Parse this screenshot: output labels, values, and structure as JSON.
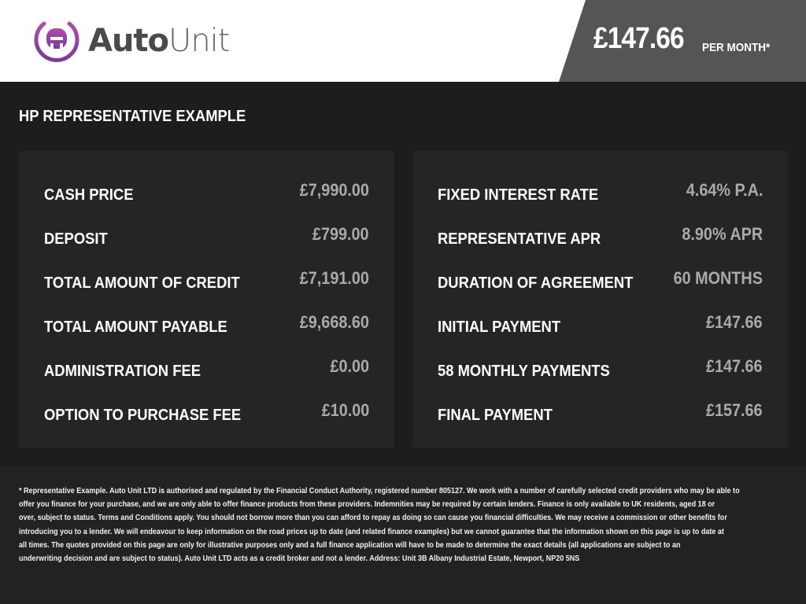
{
  "header": {
    "logo_text_bold": "Auto",
    "logo_text_light": "Unit",
    "price": "£147.66",
    "per_month": "PER MONTH*"
  },
  "colors": {
    "brand_purple": "#8e3a9d",
    "price_panel": "#555555",
    "panel": "#252525",
    "background": "#1d1d1d"
  },
  "section_title": "HP REPRESENTATIVE EXAMPLE",
  "left": [
    {
      "label": "CASH PRICE",
      "value": "£7,990.00"
    },
    {
      "label": "DEPOSIT",
      "value": "£799.00"
    },
    {
      "label": "TOTAL AMOUNT OF CREDIT",
      "value": "£7,191.00"
    },
    {
      "label": "TOTAL AMOUNT PAYABLE",
      "value": "£9,668.60"
    },
    {
      "label": "ADMINISTRATION FEE",
      "value": "£0.00"
    },
    {
      "label": "OPTION TO PURCHASE FEE",
      "value": "£10.00"
    }
  ],
  "right": [
    {
      "label": "FIXED INTEREST RATE",
      "value": "4.64% P.A."
    },
    {
      "label": "REPRESENTATIVE APR",
      "value": "8.90% APR"
    },
    {
      "label": "DURATION OF AGREEMENT",
      "value": "60 MONTHS"
    },
    {
      "label": "INITIAL PAYMENT",
      "value": "£147.66"
    },
    {
      "label": "58 MONTHLY PAYMENTS",
      "value": "£147.66"
    },
    {
      "label": "FINAL PAYMENT",
      "value": "£157.66"
    }
  ],
  "disclaimer": [
    "* Representative Example. Auto Unit LTD is authorised and regulated by the Financial Conduct Authority, registered number 805127. We work with a number of carefully selected credit providers who may be able to",
    "offer you finance for your purchase, and we are only able to offer finance products from these providers. Indemnities may be required by certain lenders. Finance is only available to UK residents, aged 18 or",
    "over, subject to status. Terms and Conditions apply. You should not borrow more than you can afford to repay as doing so can cause you financial difficulties. We may receive a commission or other benefits for",
    "introducing you to a lender. We will endeavour to keep information on the road prices up to date (and related finance examples) but we cannot guarantee that the information shown on this page is up to date at",
    "all times. The quotes provided on this page are only for illustrative purposes only and a full finance application will have to be made to determine the exact details (all applications are subject to an",
    "underwriting decision and are subject to status). Auto Unit LTD acts as a credit broker and not a lender. Address: Unit 3B Albany Industrial Estate, Newport, NP20 5NS"
  ]
}
